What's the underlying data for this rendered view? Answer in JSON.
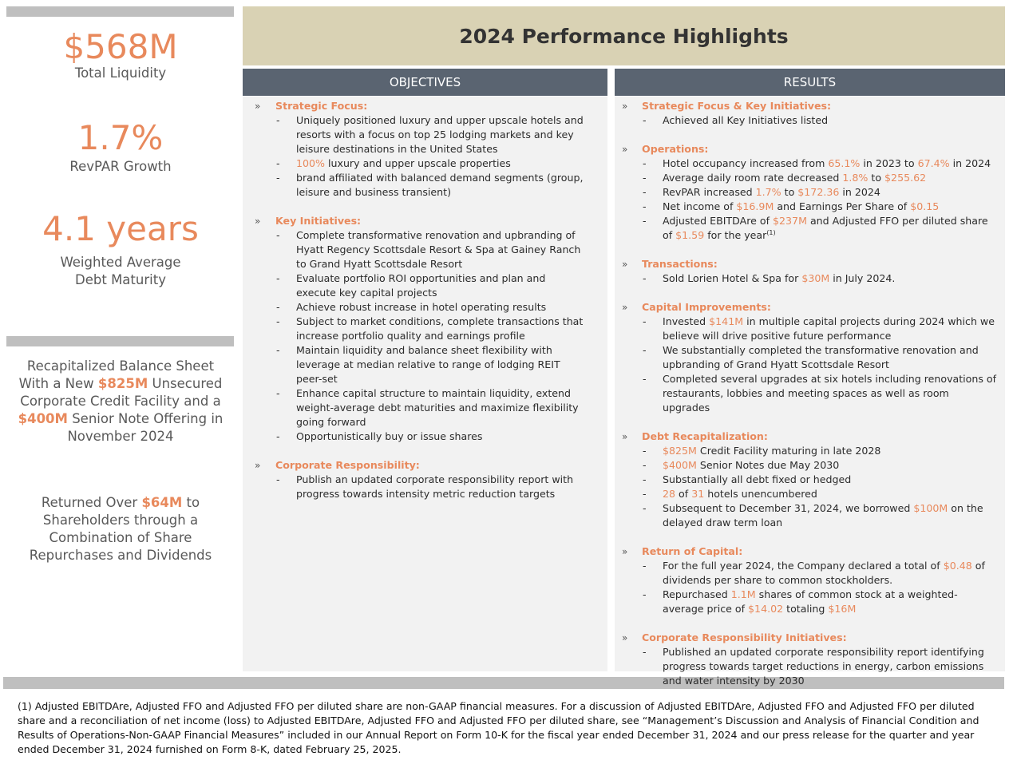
{
  "sidebar": {
    "metrics": [
      {
        "value": "$568M",
        "label": "Total Liquidity"
      },
      {
        "value": "1.7%",
        "label": "RevPAR Growth"
      },
      {
        "value": "4.1 years",
        "label_line1": "Weighted Average",
        "label_line2": "Debt Maturity"
      }
    ],
    "recap": {
      "line1": "Recapitalized Balance Sheet",
      "line2a": "With a New ",
      "line2b": "$825M",
      "line2c": " Unsecured",
      "line3": "Corporate Credit Facility and a",
      "line4a": "$400M",
      "line4b": " Senior Note Offering in",
      "line5": "November 2024"
    },
    "returned": {
      "line1a": "Returned Over ",
      "line1b": "$64M",
      "line1c": " to",
      "line2": "Shareholders through a",
      "line3": "Combination of Share",
      "line4": "Repurchases and Dividends"
    }
  },
  "title": "2024 Performance Highlights",
  "objectives": {
    "header": "OBJECTIVES",
    "chevron": "»",
    "strategic_focus": {
      "title": "Strategic Focus:",
      "b1": "Uniquely positioned luxury and upper upscale hotels and resorts with a focus on top 25 lodging markets and key leisure destinations in the United States",
      "b2_hl": "100%",
      "b2_rest": " luxury and upper upscale properties",
      "b3": "brand affiliated with balanced demand segments (group, leisure and business transient)"
    },
    "key_initiatives": {
      "title": "Key Initiatives:",
      "items": [
        "Complete transformative renovation and upbranding of Hyatt Regency Scottsdale Resort & Spa at Gainey Ranch to Grand Hyatt Scottsdale Resort",
        "Evaluate portfolio ROI opportunities and plan and execute key capital projects",
        "Achieve robust increase in hotel operating results",
        "Subject to market conditions, complete transactions that increase portfolio quality and earnings profile",
        "Maintain liquidity and balance sheet flexibility with leverage at median relative to range of lodging REIT peer-set",
        "Enhance capital structure to maintain liquidity, extend weight-average debt maturities and maximize flexibility going forward",
        "Opportunistically buy or issue shares"
      ]
    },
    "corporate_responsibility": {
      "title": "Corporate Responsibility:",
      "b1": "Publish an updated corporate responsibility report with progress towards intensity metric reduction targets"
    }
  },
  "results": {
    "header": "RESULTS",
    "chevron": "»",
    "strategic": {
      "title": "Strategic Focus & Key Initiatives:",
      "b1": "Achieved all Key Initiatives listed"
    },
    "operations": {
      "title": "Operations:",
      "occ_a": "Hotel occupancy increased from ",
      "occ_b": "65.1%",
      "occ_c": " in 2023 to ",
      "occ_d": "67.4%",
      "occ_e": " in 2024",
      "adr_a": "Average daily room rate decreased ",
      "adr_b": "1.8%",
      "adr_c": " to ",
      "adr_d": "$255.62",
      "rev_a": "RevPAR increased ",
      "rev_b": "1.7%",
      "rev_c": " to ",
      "rev_d": "$172.36",
      "rev_e": " in 2024",
      "ni_a": "Net income of ",
      "ni_b": "$16.9M",
      "ni_c": " and Earnings Per Share of ",
      "ni_d": "$0.15",
      "eb_a": "Adjusted EBITDAre of ",
      "eb_b": "$237M",
      "eb_c": " and Adjusted FFO per diluted share of ",
      "eb_d": "$1.59",
      "eb_e": " for the year",
      "eb_sup": "(1)"
    },
    "transactions": {
      "title": "Transactions:",
      "b1_a": "Sold Lorien Hotel & Spa for ",
      "b1_b": "$30M",
      "b1_c": " in July 2024."
    },
    "capital": {
      "title": "Capital Improvements:",
      "b1_a": "Invested ",
      "b1_b": "$141M",
      "b1_c": " in multiple capital projects during 2024 which we believe will drive positive future performance",
      "b2": "We substantially completed the transformative renovation and upbranding of Grand Hyatt Scottsdale Resort",
      "b3": "Completed several upgrades at six hotels including renovations of restaurants, lobbies and meeting spaces as well as room upgrades"
    },
    "debt": {
      "title": "Debt Recapitalization:",
      "b1_a": "$825M",
      "b1_b": " Credit Facility maturing in late 2028",
      "b2_a": "$400M",
      "b2_b": " Senior Notes due May 2030",
      "b3": "Substantially all debt fixed or hedged",
      "b4_a": "28",
      "b4_b": " of ",
      "b4_c": "31",
      "b4_d": " hotels unencumbered",
      "b5_a": "Subsequent to December 31, 2024, we borrowed ",
      "b5_b": "$100M",
      "b5_c": " on the delayed draw term loan"
    },
    "return": {
      "title": "Return of Capital:",
      "b1_a": "For the full year 2024, the Company declared a total of ",
      "b1_b": "$0.48",
      "b1_c": " of dividends per share to common stockholders.",
      "b2_a": "Repurchased ",
      "b2_b": "1.1M",
      "b2_c": " shares of common stock at a weighted-average price of ",
      "b2_d": "$14.02",
      "b2_e": " totaling ",
      "b2_f": "$16M"
    },
    "cri": {
      "title": "Corporate Responsibility Initiatives:",
      "b1": "Published an updated corporate responsibility report identifying progress towards target reductions in energy, carbon emissions and water intensity by 2030"
    }
  },
  "footnote": "(1) Adjusted EBITDAre, Adjusted FFO and Adjusted FFO per diluted share are non-GAAP financial measures. For a discussion of Adjusted EBITDAre, Adjusted FFO and Adjusted FFO per diluted share and a reconciliation of net income (loss) to Adjusted EBITDAre, Adjusted FFO and Adjusted FFO per diluted share, see “Management’s Discussion and Analysis of Financial Condition and Results of Operations-Non-GAAP Financial Measures” included in our Annual Report on Form 10-K for the fiscal year ended December 31, 2024 and our press release for the quarter and year ended December 31, 2024 furnished on Form 8-K, dated February 25, 2025."
}
